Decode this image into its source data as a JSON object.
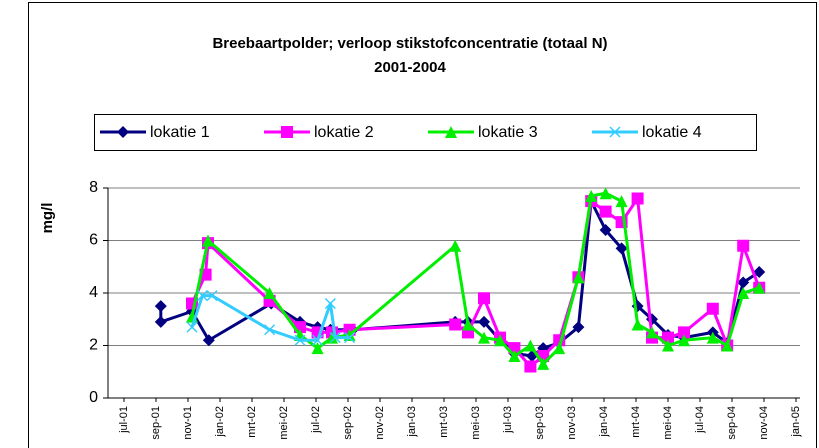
{
  "chart_data": {
    "type": "line",
    "title": "Breebaartpolder; verloop stikstofconcentratie (totaal N)",
    "subtitle": "2001-2004",
    "y_label": "mg/l",
    "xlim": [
      -1,
      42.25
    ],
    "ylim": [
      0,
      8
    ],
    "yticks": [
      0,
      2,
      4,
      6,
      8
    ],
    "grid": true,
    "legend": "top",
    "xticks": [
      {
        "value": 0,
        "label": "jul-01"
      },
      {
        "value": 2,
        "label": "sep-01"
      },
      {
        "value": 4,
        "label": "nov-01"
      },
      {
        "value": 6,
        "label": "jan-02"
      },
      {
        "value": 8,
        "label": "mrt-02"
      },
      {
        "value": 10,
        "label": "mei-02"
      },
      {
        "value": 12,
        "label": "jul-02"
      },
      {
        "value": 14,
        "label": "sep-02"
      },
      {
        "value": 16,
        "label": "nov-02"
      },
      {
        "value": 18,
        "label": "jan-03"
      },
      {
        "value": 20,
        "label": "mrt-03"
      },
      {
        "value": 22,
        "label": "mei-03"
      },
      {
        "value": 24,
        "label": "jul-03"
      },
      {
        "value": 26,
        "label": "sep-03"
      },
      {
        "value": 28,
        "label": "nov-03"
      },
      {
        "value": 30,
        "label": "jan-04"
      },
      {
        "value": 32,
        "label": "mrt-04"
      },
      {
        "value": 34,
        "label": "mei-04"
      },
      {
        "value": 36,
        "label": "jul-04"
      },
      {
        "value": 38,
        "label": "sep-04"
      },
      {
        "value": 40,
        "label": "nov-04"
      },
      {
        "value": 42,
        "label": "jan-05"
      }
    ],
    "series": [
      {
        "name": "lokatie 1",
        "color": "#000080",
        "marker": "diamond",
        "x": [
          2.3,
          2.3,
          4.25,
          5.3,
          9.2,
          11,
          12.1,
          12.9,
          14.3,
          20.7,
          21.5,
          22.5,
          23.5,
          24.4,
          25.5,
          26.2,
          27.2,
          28.4,
          29.2,
          30.1,
          31.1,
          32.1,
          33,
          34,
          35,
          36.8,
          37.7,
          38.7,
          39.7
        ],
        "values": [
          3.5,
          2.9,
          3.3,
          2.2,
          3.6,
          2.9,
          2.7,
          2.6,
          2.6,
          2.9,
          2.9,
          2.9,
          2.2,
          1.7,
          1.6,
          1.9,
          2.1,
          2.7,
          7.5,
          6.4,
          5.7,
          3.5,
          3.0,
          2.4,
          2.3,
          2.5,
          2.1,
          4.4,
          4.8
        ]
      },
      {
        "name": "lokatie 2",
        "color": "#ff00ff",
        "marker": "square",
        "x": [
          4.25,
          5.1,
          5.25,
          9.1,
          11,
          12.1,
          13,
          14.1,
          20.7,
          21.5,
          22.5,
          23.5,
          24.4,
          25.4,
          26.2,
          27.2,
          28.4,
          29.2,
          30.1,
          31.1,
          32.1,
          33,
          34,
          35,
          36.8,
          37.7,
          38.7,
          39.7
        ],
        "values": [
          3.6,
          4.7,
          5.9,
          3.7,
          2.7,
          2.5,
          2.5,
          2.6,
          2.8,
          2.5,
          3.8,
          2.3,
          1.9,
          1.2,
          1.6,
          2.2,
          4.6,
          7.5,
          7.1,
          6.7,
          7.6,
          2.3,
          2.3,
          2.5,
          3.4,
          2.0,
          5.8,
          4.2
        ]
      },
      {
        "name": "lokatie 3",
        "color": "#00ee00",
        "marker": "triangle",
        "x": [
          4.25,
          5.25,
          9.1,
          11,
          12.1,
          13,
          14.1,
          20.7,
          21.5,
          22.5,
          23.5,
          24.4,
          25.4,
          26.2,
          27.2,
          28.4,
          29.2,
          30.1,
          31.1,
          32.1,
          33,
          34,
          35,
          36.8,
          37.7,
          38.7,
          39.7
        ],
        "values": [
          3.1,
          6.0,
          4.0,
          2.4,
          1.9,
          2.3,
          2.4,
          5.8,
          2.8,
          2.3,
          2.2,
          1.6,
          2.0,
          1.3,
          1.9,
          4.6,
          7.7,
          7.8,
          7.5,
          2.8,
          2.5,
          2.0,
          2.2,
          2.3,
          2.0,
          4.0,
          4.2
        ]
      },
      {
        "name": "lokatie 4",
        "color": "#33ccff",
        "marker": "x",
        "x": [
          4.25,
          4.9,
          5.5,
          9.1,
          11,
          12.1,
          12.9,
          13.2,
          14.1
        ],
        "values": [
          2.7,
          3.9,
          3.9,
          2.6,
          2.2,
          2.2,
          3.6,
          2.3,
          2.3
        ]
      }
    ]
  }
}
